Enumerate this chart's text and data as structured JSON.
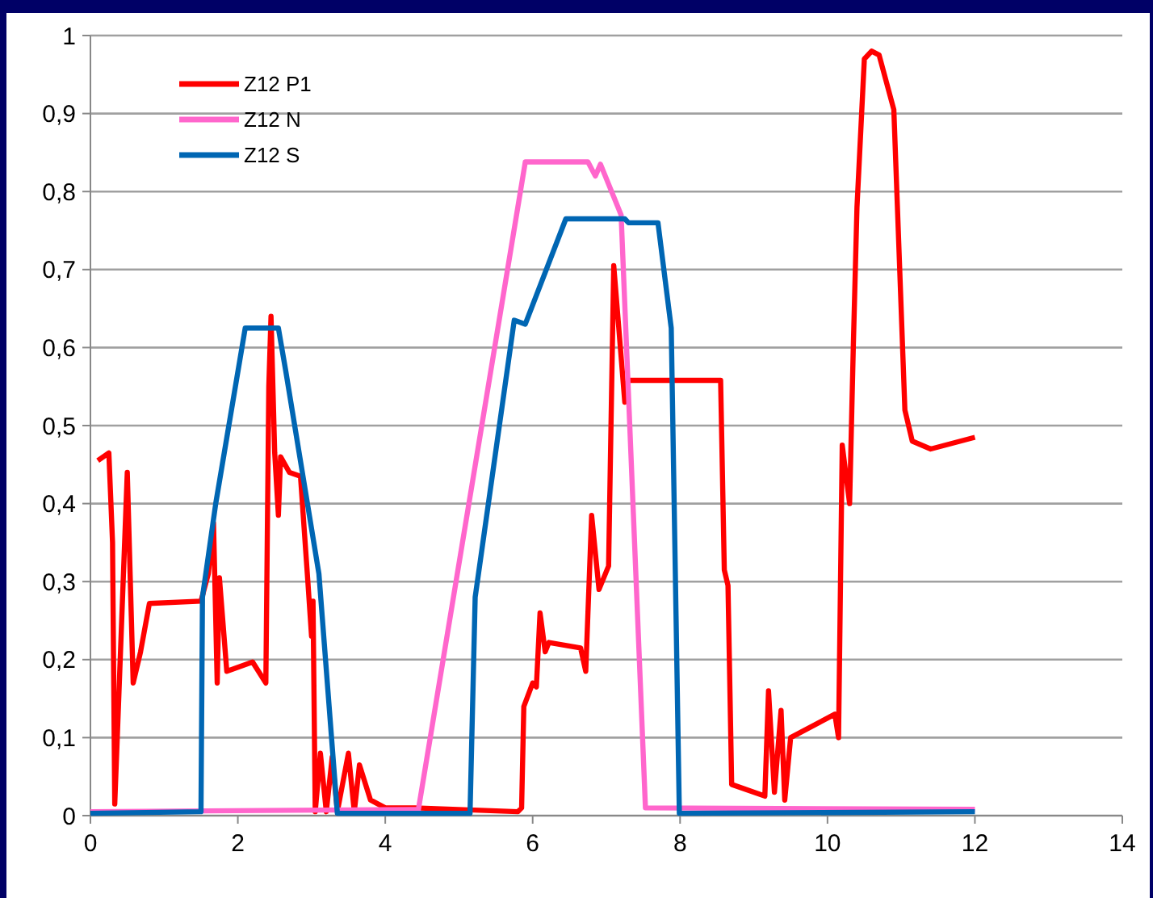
{
  "chart_data": {
    "type": "line",
    "legend": "top left",
    "grid": "y",
    "marker": "none",
    "line_style": "solid",
    "xlim": [
      0,
      14
    ],
    "xticks": [
      0,
      2,
      4,
      6,
      8,
      10,
      12,
      14
    ],
    "ylim": [
      0,
      1
    ],
    "yticks": [
      0,
      {
        "value": 0.1,
        "label": "0,1"
      },
      {
        "value": 0.2,
        "label": "0,2"
      },
      {
        "value": 0.3,
        "label": "0,3"
      },
      {
        "value": 0.4,
        "label": "0,4"
      },
      {
        "value": 0.5,
        "label": "0,5"
      },
      {
        "value": 0.6,
        "label": "0,6"
      },
      {
        "value": 0.7,
        "label": "0,7"
      },
      {
        "value": 0.8,
        "label": "0,8"
      },
      {
        "value": 0.9,
        "label": "0,9"
      },
      1
    ],
    "series": [
      {
        "name": "Z12 P1",
        "color": "#ff0000",
        "x": [
          0.1,
          0.25,
          0.3,
          0.33,
          0.5,
          0.58,
          0.68,
          0.8,
          1.5,
          1.6,
          1.67,
          1.72,
          1.75,
          1.85,
          2.2,
          2.38,
          2.42,
          2.45,
          2.5,
          2.55,
          2.58,
          2.7,
          2.85,
          2.95,
          3.0,
          3.02,
          3.05,
          3.12,
          3.2,
          3.28,
          3.35,
          3.5,
          3.58,
          3.65,
          3.8,
          4.0,
          4.4,
          5.8,
          5.85,
          5.88,
          6.0,
          6.05,
          6.1,
          6.17,
          6.22,
          6.65,
          6.72,
          6.8,
          6.9,
          7.03,
          7.1,
          7.25,
          7.3,
          8.55,
          8.6,
          8.65,
          8.7,
          9.15,
          9.2,
          9.28,
          9.37,
          9.42,
          9.5,
          10.1,
          10.15,
          10.2,
          10.3,
          10.35,
          10.4,
          10.5,
          10.6,
          10.7,
          10.9,
          11.05,
          11.15,
          11.4,
          12.0
        ],
        "values": [
          0.455,
          0.465,
          0.35,
          0.015,
          0.44,
          0.17,
          0.21,
          0.272,
          0.275,
          0.31,
          0.375,
          0.17,
          0.305,
          0.185,
          0.197,
          0.17,
          0.55,
          0.64,
          0.465,
          0.385,
          0.46,
          0.44,
          0.435,
          0.3,
          0.23,
          0.275,
          0.005,
          0.08,
          0.005,
          0.075,
          0.005,
          0.08,
          0.005,
          0.065,
          0.02,
          0.01,
          0.01,
          0.005,
          0.01,
          0.14,
          0.17,
          0.165,
          0.26,
          0.21,
          0.222,
          0.215,
          0.185,
          0.385,
          0.29,
          0.32,
          0.705,
          0.53,
          0.558,
          0.558,
          0.315,
          0.295,
          0.04,
          0.025,
          0.16,
          0.03,
          0.135,
          0.02,
          0.1,
          0.13,
          0.1,
          0.475,
          0.4,
          0.6,
          0.78,
          0.97,
          0.98,
          0.975,
          0.905,
          0.52,
          0.48,
          0.47,
          0.485
        ]
      },
      {
        "name": "Z12 N",
        "color": "#ff66cc",
        "x": [
          0,
          4.45,
          5.9,
          6.75,
          6.85,
          6.92,
          7.2,
          7.53,
          12
        ],
        "values": [
          0.005,
          0.008,
          0.838,
          0.838,
          0.82,
          0.835,
          0.77,
          0.01,
          0.008
        ]
      },
      {
        "name": "Z12 S",
        "color": "#0066b3",
        "x": [
          0,
          1.5,
          1.52,
          1.7,
          2.1,
          2.55,
          2.65,
          3.1,
          3.35,
          5.15,
          5.22,
          5.75,
          5.9,
          6.45,
          7.25,
          7.3,
          7.7,
          7.88,
          7.99,
          12
        ],
        "values": [
          0.003,
          0.005,
          0.28,
          0.4,
          0.625,
          0.625,
          0.57,
          0.31,
          0.003,
          0.003,
          0.28,
          0.635,
          0.63,
          0.765,
          0.765,
          0.76,
          0.76,
          0.625,
          0.003,
          0.005
        ]
      }
    ]
  }
}
